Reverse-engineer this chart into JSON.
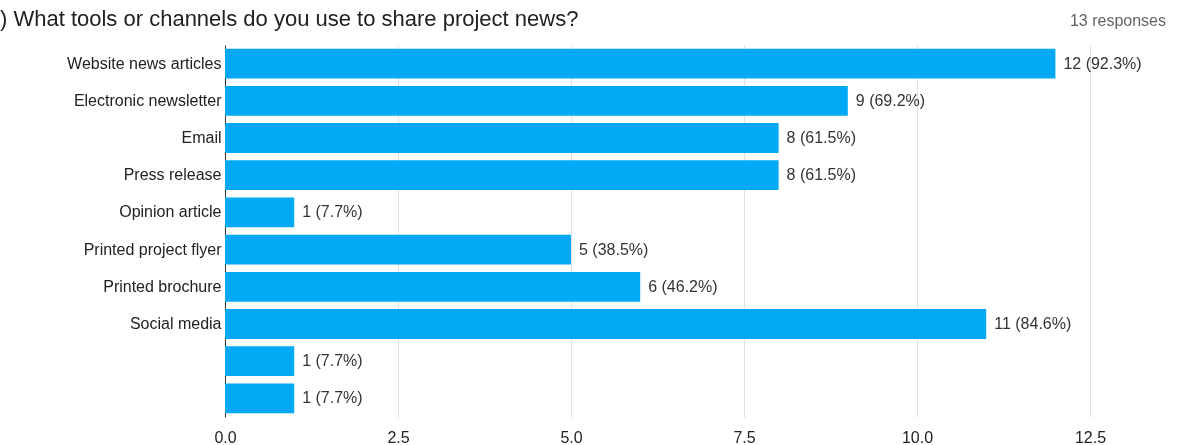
{
  "chart_data": {
    "type": "bar",
    "orientation": "horizontal",
    "title": ") What tools or channels do you use to share project news?",
    "subtitle": "13 responses",
    "categories": [
      "Website news articles",
      "Electronic newsletter",
      "Email",
      "Press release",
      "Opinion article",
      "Printed project flyer",
      "Printed brochure",
      "Social media",
      null,
      null
    ],
    "values": [
      12,
      9,
      8,
      8,
      1,
      5,
      6,
      11,
      1,
      1
    ],
    "value_labels": [
      "12 (92.3%)",
      "9 (69.2%)",
      "8 (61.5%)",
      "8 (61.5%)",
      "1 (7.7%)",
      "5 (38.5%)",
      "6 (46.2%)",
      "11 (84.6%)",
      "1 (7.7%)",
      "1 (7.7%)"
    ],
    "color": "#03a9f4",
    "xlim": [
      0,
      12.5
    ],
    "xticks": [
      {
        "value": 0,
        "label": "0.0"
      },
      {
        "value": 2.5,
        "label": "2.5"
      },
      {
        "value": 5,
        "label": "5.0"
      },
      {
        "value": 7.5,
        "label": "7.5"
      },
      {
        "value": 10,
        "label": "10.0"
      },
      {
        "value": 12.5,
        "label": "12.5"
      }
    ],
    "grid": "x"
  }
}
